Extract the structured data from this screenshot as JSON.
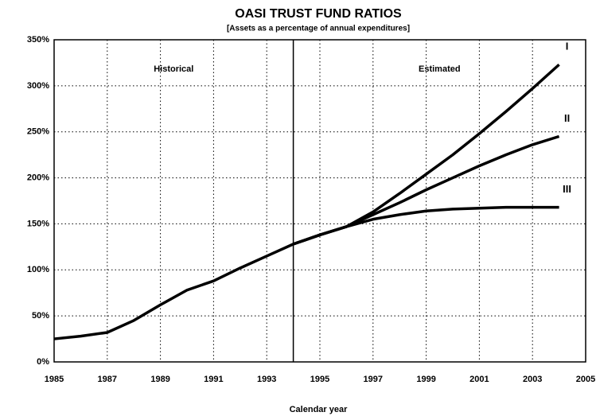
{
  "chart_data": {
    "type": "line",
    "title": "OASI TRUST FUND RATIOS",
    "subtitle": "[Assets as a percentage of annual expenditures]",
    "xlabel": "Calendar year",
    "annotations": [
      "Historical",
      "Estimated"
    ],
    "divider": 1994,
    "x": [
      1985,
      1986,
      1987,
      1988,
      1989,
      1990,
      1991,
      1992,
      1993,
      1994,
      1995,
      1996,
      1997,
      1998,
      1999,
      2000,
      2001,
      2002,
      2003,
      2004
    ],
    "series": [
      {
        "name": "I",
        "color": "#000000",
        "values": [
          25,
          28,
          32,
          45,
          62,
          78,
          88,
          102,
          115,
          128,
          138,
          147,
          163,
          183,
          204,
          225,
          248,
          272,
          297,
          323
        ]
      },
      {
        "name": "II",
        "color": "#000000",
        "values": [
          null,
          null,
          null,
          null,
          null,
          null,
          null,
          null,
          null,
          128,
          138,
          147,
          160,
          173,
          187,
          200,
          213,
          225,
          236,
          245
        ]
      },
      {
        "name": "III",
        "color": "#000000",
        "values": [
          null,
          null,
          null,
          null,
          null,
          null,
          null,
          null,
          null,
          128,
          138,
          147,
          155,
          160,
          164,
          166,
          167,
          168,
          168,
          168
        ]
      }
    ],
    "xlim": [
      1985,
      2005
    ],
    "xticks": [
      1985,
      1987,
      1989,
      1991,
      1993,
      1995,
      1997,
      1999,
      2001,
      2003,
      2005
    ],
    "ylim": [
      0,
      350
    ],
    "yticks": [
      {
        "value": 0,
        "label": "0%"
      },
      {
        "value": 50,
        "label": "50%"
      },
      {
        "value": 100,
        "label": "100%"
      },
      {
        "value": 150,
        "label": "150%"
      },
      {
        "value": 200,
        "label": "200%"
      },
      {
        "value": 250,
        "label": "250%"
      },
      {
        "value": 300,
        "label": "300%"
      },
      {
        "value": 350,
        "label": "350%"
      }
    ],
    "grid": true
  }
}
